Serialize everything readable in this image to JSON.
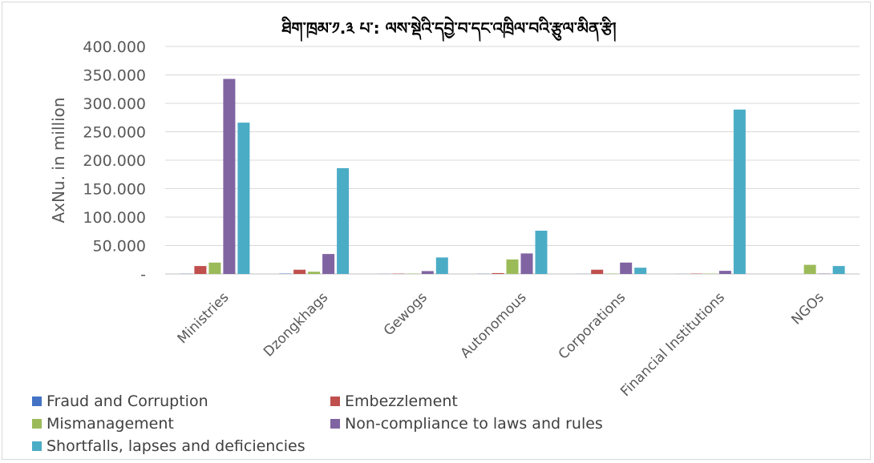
{
  "chart_data": {
    "type": "bar",
    "title": "ཐིག་ཁྲམ་༡.༣ པ་: ལས་སྡེའི་དབྱེ་བ་དང་འཁྲིལ་བའི་རྩུལ་མིན་རྩི།",
    "ylabel": "AxNu. in million",
    "xlabel": "",
    "ylim": [
      0,
      400
    ],
    "ytick_labels": [
      "-",
      "50.000",
      "100.000",
      "150.000",
      "200.000",
      "250.000",
      "300.000",
      "350.000",
      "400.000"
    ],
    "categories": [
      "Ministries",
      "Dzongkhags",
      "Gewogs",
      "Autonomous",
      "Corporations",
      "Financial Institutions",
      "NGOs"
    ],
    "legend_position": "bottom",
    "grid": true,
    "series": [
      {
        "name": "Fraud and Corruption",
        "color": "#4472c4",
        "values": [
          0.3,
          0.5,
          0.2,
          0.3,
          0.2,
          0.1,
          0
        ]
      },
      {
        "name": "Embezzlement",
        "color": "#c0504d",
        "values": [
          14,
          7.5,
          0.5,
          1.5,
          7.5,
          0.5,
          0
        ]
      },
      {
        "name": "Mismanagement",
        "color": "#9bbb59",
        "values": [
          20,
          4,
          0.5,
          25.5,
          0.5,
          0.5,
          16
        ]
      },
      {
        "name": "Non-compliance to laws and rules",
        "color": "#8064a2",
        "values": [
          343,
          35,
          5,
          36,
          20,
          5.5,
          0.5
        ]
      },
      {
        "name": "Shortfalls, lapses and deficiencies",
        "color": "#4bacc6",
        "values": [
          266,
          186,
          29,
          76,
          11,
          289,
          14
        ]
      }
    ]
  }
}
